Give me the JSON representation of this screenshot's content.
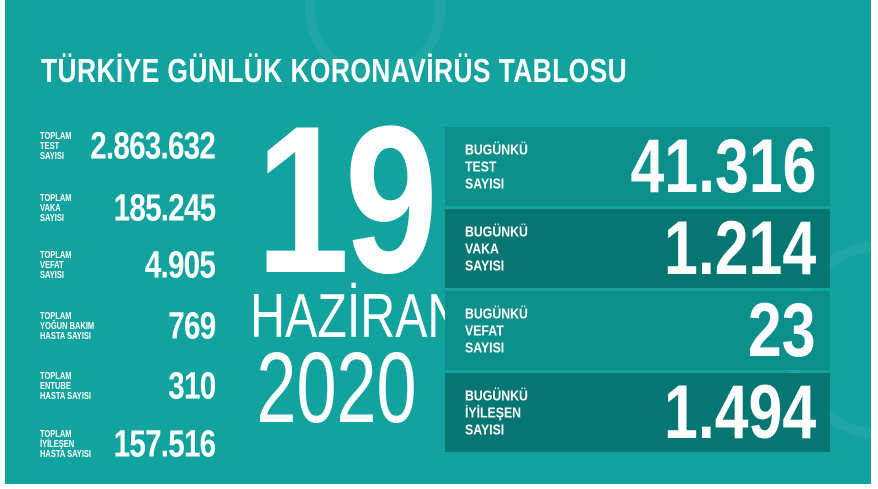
{
  "title": "TÜRKİYE GÜNLÜK KORONAVİRÜS TABLOSU",
  "totals": [
    {
      "label": "TOPLAM\nTEST\nSAYISI",
      "value": "2.863.632"
    },
    {
      "label": "TOPLAM\nVAKA\nSAYISI",
      "value": "185.245"
    },
    {
      "label": "TOPLAM\nVEFAT\nSAYISI",
      "value": "4.905"
    },
    {
      "label": "TOPLAM\nYOĞUN BAKIM\nHASTA SAYISI",
      "value": "769"
    },
    {
      "label": "TOPLAM\nENTUBE\nHASTA SAYISI",
      "value": "310"
    },
    {
      "label": "TOPLAM\nİYİLEŞEN\nHASTA SAYISI",
      "value": "157.516"
    }
  ],
  "date": {
    "day": "19",
    "month": "HAZİRAN",
    "year": "2020"
  },
  "today": [
    {
      "label": "BUGÜNKÜ\nTEST\nSAYISI",
      "value": "41.316"
    },
    {
      "label": "BUGÜNKÜ\nVAKA\nSAYISI",
      "value": "1.214"
    },
    {
      "label": "BUGÜNKÜ\nVEFAT\nSAYISI",
      "value": "23"
    },
    {
      "label": "BUGÜNKÜ\nİYİLEŞEN\nSAYISI",
      "value": "1.494"
    }
  ],
  "colors": {
    "background": "#12a39f",
    "row_light": "#0a8f8b",
    "row_dark": "#057672"
  }
}
